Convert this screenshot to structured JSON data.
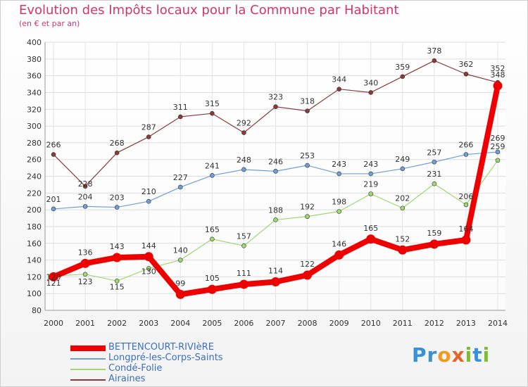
{
  "title": "Evolution des Impôts locaux pour la Commune par Habitant",
  "subtitle": "(en € et par an)",
  "logo": {
    "text": [
      "P",
      "r",
      "o",
      "x",
      "i",
      "t",
      "i"
    ],
    "colors": [
      "#3a8fd9",
      "#3a8fd9",
      "#f29a1f",
      "#e8632a",
      "#7bbf2e",
      "#3a8fd9",
      "#7bbf2e"
    ]
  },
  "chart_data": {
    "type": "line",
    "title": "Evolution des Impôts locaux pour la Commune par Habitant",
    "subtitle": "(en € et par an)",
    "x": [
      "2000",
      "2001",
      "2002",
      "2003",
      "2004",
      "2005",
      "2006",
      "2007",
      "2008",
      "2009",
      "2010",
      "2011",
      "2012",
      "2013",
      "2014"
    ],
    "ylim": [
      80,
      400
    ],
    "yticks": [
      80,
      100,
      120,
      140,
      160,
      180,
      200,
      220,
      240,
      260,
      280,
      300,
      320,
      340,
      360,
      380,
      400
    ],
    "grid": true,
    "legend_position": "bottom-left",
    "series": [
      {
        "name": "BETTENCOURT-RIVIèRE",
        "color": "#ee0000",
        "width": 8,
        "values": [
          120,
          136,
          143,
          144,
          99,
          105,
          111,
          114,
          122,
          146,
          165,
          152,
          159,
          164,
          348
        ],
        "labels": [
          "120",
          "136",
          "143",
          "144",
          "99",
          "105",
          "111",
          "114",
          "122",
          "146",
          "165",
          "152",
          "159",
          "164",
          "348"
        ]
      },
      {
        "name": "Longpré-les-Corps-Saints",
        "color": "#6f9fd8",
        "width": 1.2,
        "values": [
          201,
          204,
          203,
          210,
          227,
          241,
          248,
          246,
          253,
          243,
          243,
          249,
          257,
          266,
          269
        ],
        "labels": [
          "201",
          "204",
          "203",
          "210",
          "227",
          "241",
          "248",
          "246",
          "253",
          "243",
          "243",
          "249",
          "257",
          "266",
          "269"
        ]
      },
      {
        "name": "Condé-Folie",
        "color": "#9fd870",
        "width": 1.2,
        "values": [
          121,
          123,
          115,
          130,
          140,
          165,
          157,
          188,
          192,
          198,
          219,
          202,
          231,
          206,
          259
        ],
        "labels": [
          "121",
          "123",
          "115",
          "130",
          "140",
          "165",
          "157",
          "188",
          "192",
          "198",
          "219",
          "202",
          "231",
          "206",
          "259"
        ]
      },
      {
        "name": "Airaines",
        "color": "#8b3a3a",
        "width": 1.2,
        "values": [
          266,
          228,
          268,
          287,
          311,
          315,
          292,
          323,
          318,
          344,
          340,
          359,
          378,
          362,
          352
        ],
        "labels": [
          "266",
          "228",
          "268",
          "287",
          "311",
          "315",
          "292",
          "323",
          "318",
          "344",
          "340",
          "359",
          "378",
          "362",
          "352"
        ]
      }
    ]
  }
}
